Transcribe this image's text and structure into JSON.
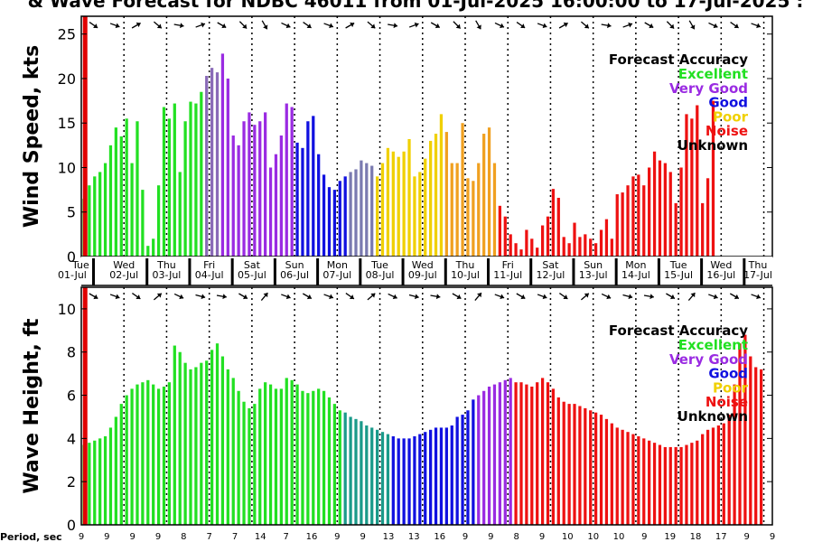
{
  "title": "& Wave Forecast for NDBC 46011 from 01-Jul-2025 16:00:00 to 17-Jul-2025 :",
  "period_label": "Period, sec",
  "legend": {
    "title": "Forecast Accuracy",
    "items": [
      {
        "label": "Excellent",
        "color": "#22e022"
      },
      {
        "label": "Very Good",
        "color": "#9a2be2"
      },
      {
        "label": "Good",
        "color": "#1010e0"
      },
      {
        "label": "Poor",
        "color": "#f0d000"
      },
      {
        "label": "Noise",
        "color": "#ee1111"
      },
      {
        "label": "Unknown",
        "color": "#000000"
      }
    ]
  },
  "day_labels": [
    {
      "wd": "Tue",
      "date": "01-Jul"
    },
    {
      "wd": "Wed",
      "date": "02-Jul"
    },
    {
      "wd": "Thu",
      "date": "03-Jul"
    },
    {
      "wd": "Fri",
      "date": "04-Jul"
    },
    {
      "wd": "Sat",
      "date": "05-Jul"
    },
    {
      "wd": "Sun",
      "date": "06-Jul"
    },
    {
      "wd": "Mon",
      "date": "07-Jul"
    },
    {
      "wd": "Tue",
      "date": "08-Jul"
    },
    {
      "wd": "Wed",
      "date": "09-Jul"
    },
    {
      "wd": "Thu",
      "date": "10-Jul"
    },
    {
      "wd": "Fri",
      "date": "11-Jul"
    },
    {
      "wd": "Sat",
      "date": "12-Jul"
    },
    {
      "wd": "Sun",
      "date": "13-Jul"
    },
    {
      "wd": "Mon",
      "date": "14-Jul"
    },
    {
      "wd": "Tue",
      "date": "15-Jul"
    },
    {
      "wd": "Wed",
      "date": "16-Jul"
    },
    {
      "wd": "Thu",
      "date": "17-Jul"
    }
  ],
  "periods": [
    "9",
    "9",
    "9",
    "9",
    "8",
    "7",
    "7",
    "14",
    "7",
    "16",
    "9",
    "9",
    "13",
    "13",
    "16",
    "9",
    "9",
    "8",
    "9",
    "10",
    "10",
    "10",
    "9",
    "19",
    "18",
    "17",
    "9",
    "9"
  ],
  "chart_data": [
    {
      "type": "bar",
      "title": "",
      "xlabel": "",
      "ylabel": "Wind Speed, kts",
      "x_start_day": 1.0,
      "x_end_day": 17.2,
      "bar_step_days": 0.125,
      "ylim": [
        0,
        27
      ],
      "yticks": [
        0,
        5,
        10,
        15,
        20,
        25
      ],
      "grid": "dotted vertical lines every 24 hours",
      "series": [
        {
          "accuracy": "Excellent",
          "color": "#22e022",
          "values": [
            6.5,
            8,
            9,
            9.5,
            10.5,
            12.5,
            14.5,
            13.5,
            15.5,
            10.5,
            15.2,
            7.5,
            1.2,
            2,
            8,
            16.8,
            15.5,
            17.2,
            9.5,
            15.2,
            17.4,
            17.2,
            18.5
          ]
        },
        {
          "accuracy": "transition",
          "color": "#8a6ab8",
          "values": [
            20.3,
            21.2,
            20.7
          ]
        },
        {
          "accuracy": "Very Good",
          "color": "#9a2be2",
          "values": [
            22.8,
            20,
            13.6,
            12.5,
            15.2,
            16.2,
            14.8,
            15.2,
            16.2,
            10,
            11.5,
            13.6,
            17.2,
            16.8
          ]
        },
        {
          "accuracy": "Good",
          "color": "#1010e0",
          "values": [
            12.8,
            12.2,
            15.2,
            15.8,
            11.5,
            9.2,
            7.8,
            7.5,
            8.5,
            9
          ]
        },
        {
          "accuracy": "transition",
          "color": "#7a7ab0",
          "values": [
            9.5,
            9.8,
            10.8,
            10.5,
            10.2
          ]
        },
        {
          "accuracy": "Poor",
          "color": "#f0d000",
          "values": [
            9,
            10.5,
            12.2,
            11.8,
            11.2,
            11.8,
            13.2,
            9,
            9.5,
            11,
            13,
            13.8,
            16
          ]
        },
        {
          "accuracy": "transition",
          "color": "#f0a020",
          "values": [
            14,
            10.5,
            10.5,
            15,
            8.8,
            8.5,
            10.5,
            13.8,
            14.5,
            10.5
          ]
        },
        {
          "accuracy": "Noise",
          "color": "#ee1111",
          "values": [
            5.7,
            4.5,
            2.5,
            1.5,
            0.8,
            3,
            2,
            1,
            3.5,
            4.5,
            7.6,
            6.6,
            2.2,
            1.5,
            3.8,
            2.2,
            2.5,
            2,
            1.5,
            3,
            4.2,
            2,
            7,
            7.2,
            8,
            9,
            9.2,
            8,
            10,
            11.8,
            10.8,
            10.5,
            9.5,
            6,
            10,
            16,
            15.5,
            17,
            6,
            8.8,
            17.5
          ]
        }
      ]
    },
    {
      "type": "bar",
      "title": "",
      "xlabel": "",
      "ylabel": "Wave Height, ft",
      "x_start_day": 1.0,
      "x_end_day": 17.2,
      "bar_step_days": 0.125,
      "ylim": [
        0,
        11
      ],
      "yticks": [
        0,
        2,
        4,
        6,
        8,
        10
      ],
      "grid": "dotted vertical lines every 24 hours",
      "series": [
        {
          "accuracy": "Excellent",
          "color": "#22e022",
          "values": [
            3.7,
            3.8,
            3.9,
            4,
            4.1,
            4.5,
            5,
            5.6,
            6,
            6.3,
            6.5,
            6.6,
            6.7,
            6.5,
            6.3,
            6.4,
            6.6,
            8.3,
            8,
            7.5,
            7.2,
            7.3,
            7.5,
            7.6,
            8.1,
            8.4,
            7.8,
            7.2,
            6.8,
            6.2,
            5.7,
            5.4,
            5.6,
            6.3,
            6.6,
            6.5,
            6.3,
            6.3,
            6.8,
            6.7,
            6.5,
            6.2,
            6.1,
            6.2,
            6.3,
            6.2,
            5.9,
            5.6,
            5.3
          ]
        },
        {
          "accuracy": "transition",
          "color": "#1a9a8a",
          "values": [
            5.2,
            5,
            4.9,
            4.8,
            4.6,
            4.5,
            4.4,
            4.3,
            4.2
          ]
        },
        {
          "accuracy": "Good",
          "color": "#1010e0",
          "values": [
            4.1,
            4,
            4,
            4,
            4.1,
            4.2,
            4.3,
            4.4,
            4.5,
            4.5,
            4.5,
            4.6,
            5,
            5.1,
            5.3,
            5.8
          ]
        },
        {
          "accuracy": "Very Good",
          "color": "#9a2be2",
          "values": [
            6,
            6.2,
            6.4,
            6.5,
            6.6,
            6.7,
            6.8
          ]
        },
        {
          "accuracy": "Noise",
          "color": "#ee1111",
          "values": [
            6.6,
            6.6,
            6.5,
            6.4,
            6.6,
            6.8,
            6.6,
            6.3,
            5.9,
            5.7,
            5.6,
            5.6,
            5.5,
            5.4,
            5.3,
            5.2,
            5.1,
            4.9,
            4.7,
            4.5,
            4.4,
            4.3,
            4.2,
            4.1,
            4,
            3.9,
            3.8,
            3.7,
            3.6,
            3.6,
            3.6,
            3.6,
            3.7,
            3.8,
            3.9,
            4.2,
            4.4,
            4.5,
            4.6,
            4.7,
            5.1,
            6.5,
            8.4,
            8.8,
            7.8,
            7.3,
            7.2
          ]
        }
      ]
    }
  ]
}
